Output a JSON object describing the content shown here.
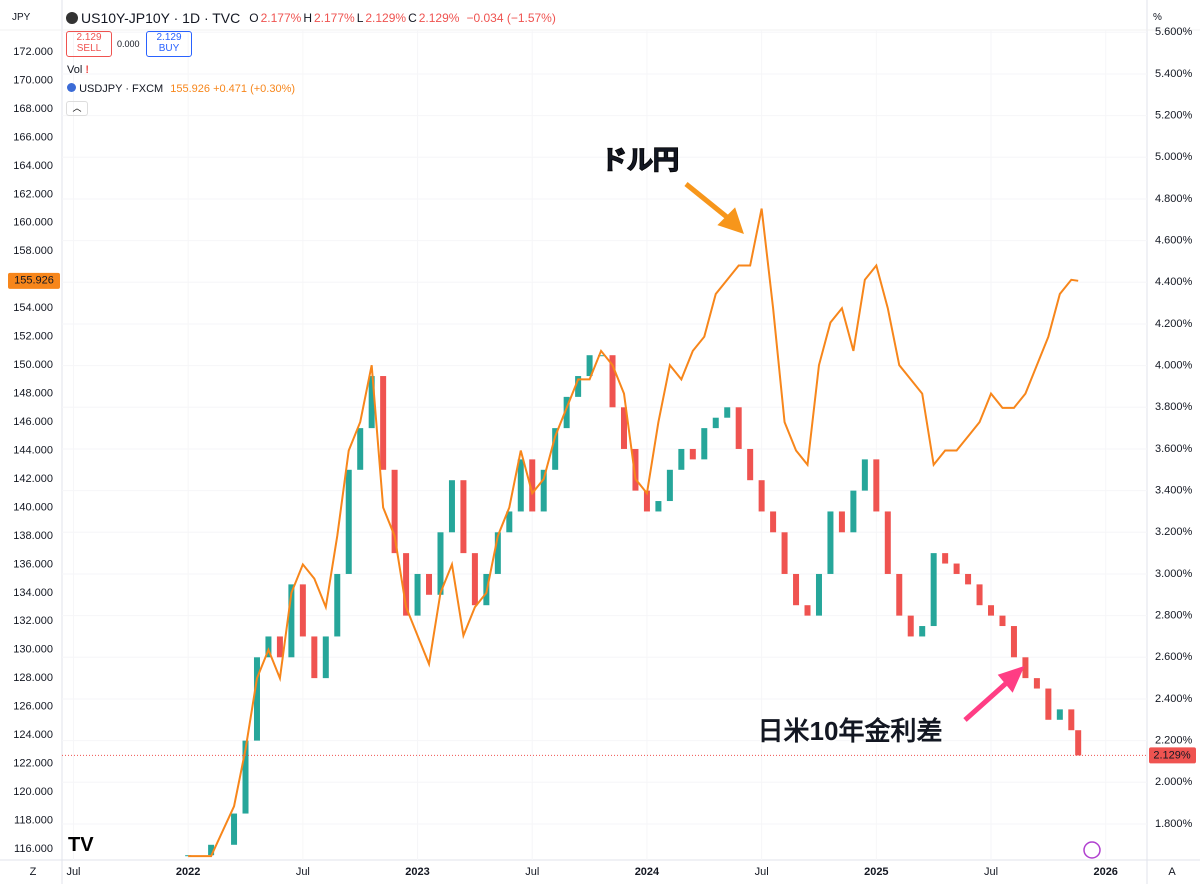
{
  "chart_data": {
    "type": "dual-axis-candle-line",
    "axis_unit_left": "JPY",
    "axis_unit_right": "%",
    "legend": {
      "symbol_ohlc": [
        "O",
        "2.177%",
        "H",
        "2.177%",
        "L",
        "2.129%",
        "C",
        "2.129%"
      ],
      "change": "−0.034 (−1.57%)",
      "sell_price": "2.129",
      "sell": "SELL",
      "spread": "0.000",
      "buy_price": "2.129",
      "buy": "BUY",
      "vol": "Vol",
      "usdjpy_quote": "155.926 +0.471 (+0.30%)"
    },
    "annotations": [
      "ドル円",
      "日米10年金利差"
    ],
    "corner_labels": [
      "Z",
      "A"
    ],
    "xlim": [
      2021.45,
      2026.18
    ],
    "xticks": [
      {
        "value": 2021.5,
        "label": "Jul"
      },
      2022,
      {
        "value": 2022.5,
        "label": "Jul"
      },
      2023,
      {
        "value": 2023.5,
        "label": "Jul"
      },
      2024,
      {
        "value": 2024.5,
        "label": "Jul"
      },
      2025,
      {
        "value": 2025.5,
        "label": "Jul"
      },
      2026
    ],
    "ylim": [
      115.23,
      173.55
    ],
    "yticks": [
      {
        "value": 116,
        "label": "116.000"
      },
      {
        "value": 118,
        "label": "118.000"
      },
      {
        "value": 120,
        "label": "120.000"
      },
      {
        "value": 122,
        "label": "122.000"
      },
      {
        "value": 124,
        "label": "124.000"
      },
      {
        "value": 126,
        "label": "126.000"
      },
      {
        "value": 128,
        "label": "128.000"
      },
      {
        "value": 130,
        "label": "130.000"
      },
      {
        "value": 132,
        "label": "132.000"
      },
      {
        "value": 134,
        "label": "134.000"
      },
      {
        "value": 136,
        "label": "136.000"
      },
      {
        "value": 138,
        "label": "138.000"
      },
      {
        "value": 140,
        "label": "140.000"
      },
      {
        "value": 142,
        "label": "142.000"
      },
      {
        "value": 144,
        "label": "144.000"
      },
      {
        "value": 146,
        "label": "146.000"
      },
      {
        "value": 148,
        "label": "148.000"
      },
      {
        "value": 150,
        "label": "150.000"
      },
      {
        "value": 152,
        "label": "152.000"
      },
      {
        "value": 154,
        "label": "154.000"
      },
      {
        "value": 156,
        "label": "156.000"
      },
      {
        "value": 158,
        "label": "158.000"
      },
      {
        "value": 160,
        "label": "160.000"
      },
      {
        "value": 162,
        "label": "162.000"
      },
      {
        "value": 164,
        "label": "164.000"
      },
      {
        "value": 166,
        "label": "166.000"
      },
      {
        "value": 168,
        "label": "168.000"
      },
      {
        "value": 170,
        "label": "170.000"
      },
      {
        "value": 172,
        "label": "172.000"
      }
    ],
    "y2lim": [
      1.627,
      5.611
    ],
    "y2ticks": [
      {
        "value": 1.8,
        "label": "1.800%"
      },
      {
        "value": 2.0,
        "label": "2.000%"
      },
      {
        "value": 2.2,
        "label": "2.200%"
      },
      {
        "value": 2.4,
        "label": "2.400%"
      },
      {
        "value": 2.6,
        "label": "2.600%"
      },
      {
        "value": 2.8,
        "label": "2.800%"
      },
      {
        "value": 3.0,
        "label": "3.000%"
      },
      {
        "value": 3.2,
        "label": "3.200%"
      },
      {
        "value": 3.4,
        "label": "3.400%"
      },
      {
        "value": 3.6,
        "label": "3.600%"
      },
      {
        "value": 3.8,
        "label": "3.800%"
      },
      {
        "value": 4.0,
        "label": "4.000%"
      },
      {
        "value": 4.2,
        "label": "4.200%"
      },
      {
        "value": 4.4,
        "label": "4.400%"
      },
      {
        "value": 4.6,
        "label": "4.600%"
      },
      {
        "value": 4.8,
        "label": "4.800%"
      },
      {
        "value": 5.0,
        "label": "5.000%"
      },
      {
        "value": 5.2,
        "label": "5.200%"
      },
      {
        "value": 5.4,
        "label": "5.400%"
      },
      {
        "value": 5.6,
        "label": "5.600%"
      }
    ],
    "grid": true,
    "series": [
      {
        "name": "USDJPY · FXCM",
        "color": "#f7861b",
        "style": "line",
        "x": [
          2022.0,
          2022.1,
          2022.2,
          2022.25,
          2022.3,
          2022.35,
          2022.4,
          2022.45,
          2022.5,
          2022.55,
          2022.6,
          2022.65,
          2022.7,
          2022.75,
          2022.8,
          2022.85,
          2022.9,
          2022.95,
          2023.0,
          2023.05,
          2023.1,
          2023.15,
          2023.2,
          2023.25,
          2023.3,
          2023.35,
          2023.4,
          2023.45,
          2023.5,
          2023.55,
          2023.6,
          2023.65,
          2023.7,
          2023.75,
          2023.8,
          2023.85,
          2023.9,
          2023.95,
          2024.0,
          2024.05,
          2024.1,
          2024.15,
          2024.2,
          2024.25,
          2024.3,
          2024.35,
          2024.4,
          2024.45,
          2024.5,
          2024.55,
          2024.6,
          2024.65,
          2024.7,
          2024.75,
          2024.8,
          2024.85,
          2024.9,
          2024.95,
          2025.0,
          2025.05,
          2025.1,
          2025.15,
          2025.2,
          2025.25,
          2025.3,
          2025.35,
          2025.4,
          2025.45,
          2025.5,
          2025.55,
          2025.6,
          2025.65,
          2025.7,
          2025.75,
          2025.8,
          2025.85,
          2025.88
        ],
        "values": [
          115.5,
          115.5,
          119,
          123,
          128,
          130,
          128,
          134,
          136,
          135,
          133,
          138,
          144,
          146,
          150,
          140,
          138,
          133,
          131,
          129,
          134,
          136,
          131,
          133,
          134,
          138,
          140,
          144,
          141,
          142,
          145,
          147,
          149,
          149,
          151,
          150,
          148,
          142,
          141,
          146,
          150,
          149,
          151,
          152,
          155,
          156,
          157,
          157,
          161,
          154,
          146,
          144,
          143,
          150,
          153,
          154,
          151,
          156,
          157,
          154,
          150,
          149,
          148,
          143,
          144,
          144,
          145,
          146,
          148,
          147,
          147,
          148,
          150,
          152,
          155,
          156,
          155.926
        ],
        "last_label": "155.926"
      },
      {
        "name": "US10Y-JP10Y · 1D · TVC",
        "color": "#ef5350",
        "up_color": "#26a69a",
        "style": "candle",
        "axis": "y2",
        "x": [
          2022.0,
          2022.1,
          2022.2,
          2022.25,
          2022.3,
          2022.35,
          2022.4,
          2022.45,
          2022.5,
          2022.55,
          2022.6,
          2022.65,
          2022.7,
          2022.75,
          2022.8,
          2022.85,
          2022.9,
          2022.95,
          2023.0,
          2023.05,
          2023.1,
          2023.15,
          2023.2,
          2023.25,
          2023.3,
          2023.35,
          2023.4,
          2023.45,
          2023.5,
          2023.55,
          2023.6,
          2023.65,
          2023.7,
          2023.75,
          2023.8,
          2023.85,
          2023.9,
          2023.95,
          2024.0,
          2024.05,
          2024.1,
          2024.15,
          2024.2,
          2024.25,
          2024.3,
          2024.35,
          2024.4,
          2024.45,
          2024.5,
          2024.55,
          2024.6,
          2024.65,
          2024.7,
          2024.75,
          2024.8,
          2024.85,
          2024.9,
          2024.95,
          2025.0,
          2025.05,
          2025.1,
          2025.15,
          2025.2,
          2025.25,
          2025.3,
          2025.35,
          2025.4,
          2025.45,
          2025.5,
          2025.55,
          2025.6,
          2025.65,
          2025.7,
          2025.75,
          2025.8,
          2025.85,
          2025.88
        ],
        "values": [
          1.65,
          1.7,
          1.85,
          2.2,
          2.6,
          2.7,
          2.6,
          2.95,
          2.7,
          2.5,
          2.7,
          3.0,
          3.5,
          3.7,
          3.95,
          3.5,
          3.1,
          2.8,
          3.0,
          2.9,
          3.2,
          3.45,
          3.1,
          2.85,
          3.0,
          3.2,
          3.3,
          3.55,
          3.3,
          3.5,
          3.7,
          3.85,
          3.95,
          4.05,
          4.05,
          3.8,
          3.6,
          3.4,
          3.3,
          3.35,
          3.5,
          3.6,
          3.55,
          3.7,
          3.75,
          3.8,
          3.6,
          3.45,
          3.3,
          3.2,
          3.0,
          2.85,
          2.8,
          3.0,
          3.3,
          3.2,
          3.4,
          3.55,
          3.3,
          3.0,
          2.8,
          2.7,
          2.75,
          3.1,
          3.05,
          3.0,
          2.95,
          2.85,
          2.8,
          2.75,
          2.6,
          2.5,
          2.45,
          2.3,
          2.35,
          2.25,
          2.129
        ],
        "last_label": "2.129%"
      }
    ]
  }
}
